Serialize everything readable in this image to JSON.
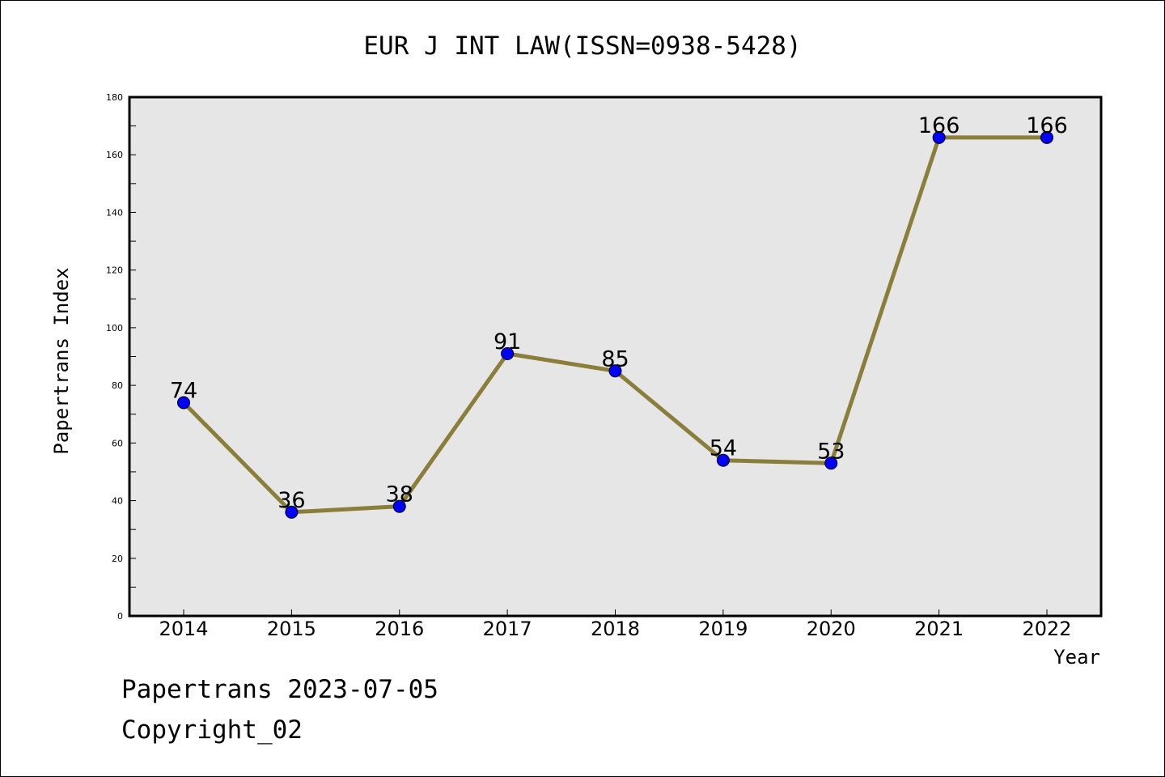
{
  "chart_data": {
    "type": "line",
    "title": "EUR J INT LAW(ISSN=0938-5428)",
    "xlabel": "Year",
    "ylabel": "Papertrans Index",
    "categories": [
      "2014",
      "2015",
      "2016",
      "2017",
      "2018",
      "2019",
      "2020",
      "2021",
      "2022"
    ],
    "series": [
      {
        "values": [
          74,
          36,
          38,
          91,
          85,
          54,
          53,
          166,
          166
        ]
      }
    ],
    "ylim": [
      0,
      180
    ],
    "yticks": [
      "0",
      "20",
      "40",
      "60",
      "80",
      "100",
      "120",
      "140",
      "160",
      "180"
    ],
    "data_labels": true,
    "grid": false,
    "colors": {
      "line": "#8b7d3a",
      "marker": "#0000ff",
      "plot_bg": "#e6e6e6"
    }
  },
  "footer": {
    "date_text": "Papertrans 2023-07-05",
    "copyright_text": "Copyright_02"
  }
}
